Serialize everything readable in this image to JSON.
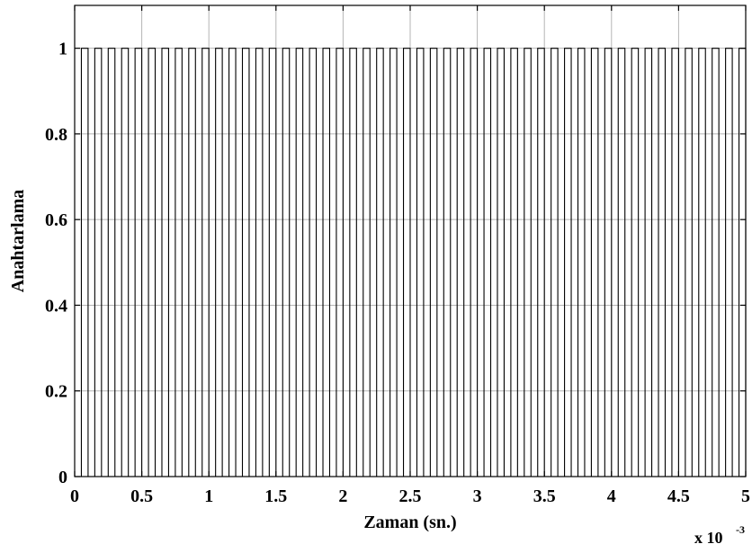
{
  "chart_data": {
    "type": "line",
    "title": "",
    "xlabel": "Zaman (sn.)",
    "ylabel": "Anahtarlama",
    "x_multiplier_label": "x 10",
    "x_multiplier_exponent": "-3",
    "xlim": [
      0,
      5
    ],
    "ylim": [
      0,
      1.1
    ],
    "x_ticks": [
      0,
      0.5,
      1,
      1.5,
      2,
      2.5,
      3,
      3.5,
      4,
      4.5,
      5
    ],
    "x_tick_labels": [
      "0",
      "0.5",
      "1",
      "1.5",
      "2",
      "2.5",
      "3",
      "3.5",
      "4",
      "4.5",
      "5"
    ],
    "y_ticks": [
      0,
      0.2,
      0.4,
      0.6,
      0.8,
      1
    ],
    "y_tick_labels": [
      "0",
      "0.2",
      "0.4",
      "0.6",
      "0.8",
      "1"
    ],
    "grid": true,
    "series": [
      {
        "signal": "square-wave switching between 0 and 1",
        "low": 0,
        "high": 1,
        "period": 0.1,
        "duty_cycle": 0.5,
        "x_start": 0.05,
        "x_end": 5,
        "color": "#000000"
      }
    ]
  }
}
